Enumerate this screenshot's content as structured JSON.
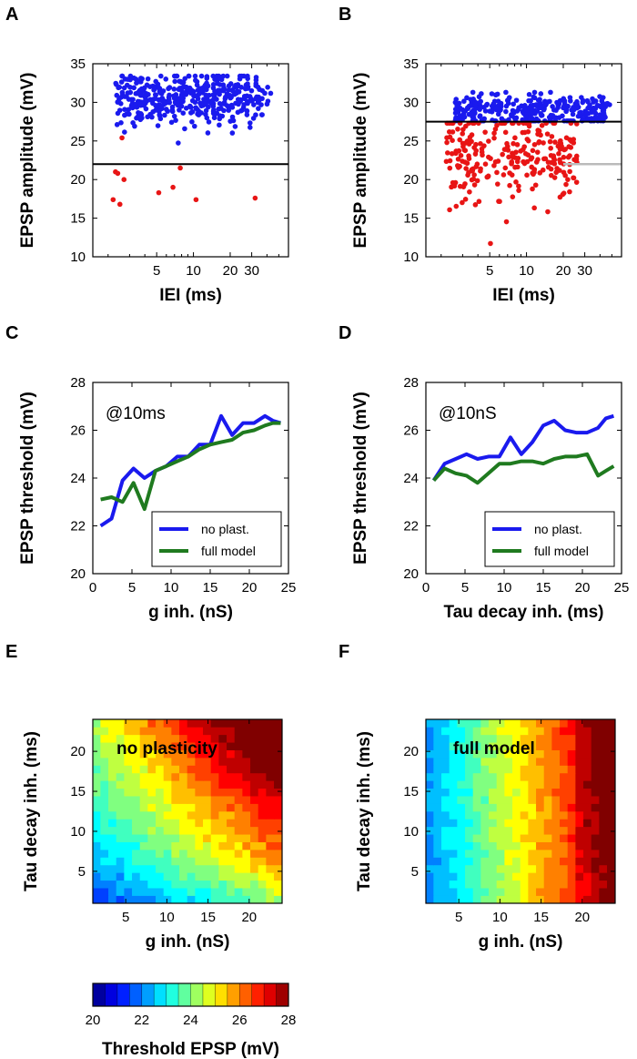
{
  "panels": {
    "A": "A",
    "B": "B",
    "C": "C",
    "D": "D",
    "E": "E",
    "F": "F"
  },
  "colors": {
    "blue": "#1a1aee",
    "red": "#e81515",
    "green": "#1f7a1f",
    "black": "#000000",
    "gray": "#bbbbbb"
  },
  "chart_data": [
    {
      "id": "A",
      "type": "scatter",
      "title": "",
      "xlabel": "IEI (ms)",
      "ylabel": "EPSP amplitude (mV)",
      "xscale": "log",
      "xlim": [
        1.5,
        60
      ],
      "ylim": [
        10,
        35
      ],
      "xticks": [
        5,
        10,
        20,
        30
      ],
      "yticks": [
        10,
        15,
        20,
        25,
        30,
        35
      ],
      "threshold_line": 22,
      "series": [
        {
          "name": "above threshold",
          "color": "blue",
          "n_points": 420,
          "y_mean": 30.5,
          "y_sd": 1.7
        },
        {
          "name": "below threshold",
          "color": "red",
          "points": [
            [
              2.3,
              21.0
            ],
            [
              2.2,
              17.4
            ],
            [
              2.5,
              16.8
            ],
            [
              2.7,
              20.0
            ],
            [
              2.4,
              20.8
            ],
            [
              5.2,
              18.3
            ],
            [
              6.8,
              19.0
            ],
            [
              7.8,
              21.5
            ],
            [
              10.5,
              17.4
            ],
            [
              32,
              17.6
            ],
            [
              2.6,
              25.4
            ]
          ]
        }
      ]
    },
    {
      "id": "B",
      "type": "scatter",
      "title": "",
      "xlabel": "IEI (ms)",
      "ylabel": "EPSP amplitude (mV)",
      "xscale": "log",
      "xlim": [
        1.5,
        60
      ],
      "ylim": [
        10,
        35
      ],
      "xticks": [
        5,
        10,
        20,
        30
      ],
      "yticks": [
        10,
        15,
        20,
        25,
        30,
        35
      ],
      "threshold_line": 27.5,
      "reference_line": 22,
      "series": [
        {
          "name": "above threshold",
          "color": "blue",
          "n_points": 300,
          "y_mean": 29.0,
          "y_sd": 1.1
        },
        {
          "name": "below threshold",
          "color": "red",
          "n_points": 260,
          "y_mean": 23.0,
          "y_sd": 3.0
        }
      ]
    },
    {
      "id": "C",
      "type": "line",
      "title": "",
      "annotation": "@10ms",
      "xlabel": "g inh. (nS)",
      "ylabel": "EPSP threshold (mV)",
      "xlim": [
        0,
        25
      ],
      "ylim": [
        20,
        28
      ],
      "xticks": [
        0,
        5,
        10,
        15,
        20,
        25
      ],
      "yticks": [
        20,
        22,
        24,
        26,
        28
      ],
      "x": [
        1,
        2.4,
        3.8,
        5.2,
        6.6,
        8,
        9.4,
        10.8,
        12.2,
        13.6,
        15,
        16.4,
        17.8,
        19.2,
        20.6,
        22,
        23,
        24
      ],
      "series": [
        {
          "name": "no plast.",
          "color": "blue",
          "values": [
            22.0,
            22.3,
            23.9,
            24.4,
            24.0,
            24.3,
            24.5,
            24.9,
            24.9,
            25.4,
            25.4,
            26.6,
            25.8,
            26.3,
            26.3,
            26.6,
            26.4,
            26.3
          ]
        },
        {
          "name": "full model",
          "color": "green",
          "values": [
            23.1,
            23.2,
            23.0,
            23.8,
            22.7,
            24.3,
            24.5,
            24.7,
            24.9,
            25.2,
            25.4,
            25.5,
            25.6,
            25.9,
            26.0,
            26.2,
            26.3,
            26.3
          ]
        }
      ],
      "legend": "lower-right"
    },
    {
      "id": "D",
      "type": "line",
      "title": "",
      "annotation": "@10nS",
      "xlabel": "Tau decay inh. (ms)",
      "ylabel": "EPSP threshold (mV)",
      "xlim": [
        0,
        25
      ],
      "ylim": [
        20,
        28
      ],
      "xticks": [
        0,
        5,
        10,
        15,
        20,
        25
      ],
      "yticks": [
        20,
        22,
        24,
        26,
        28
      ],
      "x": [
        1,
        2.4,
        3.8,
        5.2,
        6.6,
        8,
        9.4,
        10.8,
        12.2,
        13.6,
        15,
        16.4,
        17.8,
        19.2,
        20.6,
        22,
        23,
        24
      ],
      "series": [
        {
          "name": "no plast.",
          "color": "blue",
          "values": [
            23.9,
            24.6,
            24.8,
            25.0,
            24.8,
            24.9,
            24.9,
            25.7,
            25.0,
            25.5,
            26.2,
            26.4,
            26.0,
            25.9,
            25.9,
            26.1,
            26.5,
            26.6
          ]
        },
        {
          "name": "full model",
          "color": "green",
          "values": [
            23.9,
            24.4,
            24.2,
            24.1,
            23.8,
            24.2,
            24.6,
            24.6,
            24.7,
            24.7,
            24.6,
            24.8,
            24.9,
            24.9,
            25.0,
            24.1,
            24.3,
            24.5
          ]
        }
      ],
      "legend": "lower-right"
    },
    {
      "id": "E",
      "type": "heatmap",
      "title": "no plasticity",
      "xlabel": "g inh. (nS)",
      "ylabel": "Tau decay inh. (ms)",
      "xlim": [
        1,
        24
      ],
      "ylim": [
        1,
        24
      ],
      "xticks": [
        5,
        10,
        15,
        20
      ],
      "yticks": [
        5,
        10,
        15,
        20
      ],
      "value_range": [
        20,
        28
      ],
      "model": "no plasticity"
    },
    {
      "id": "F",
      "type": "heatmap",
      "title": "full model",
      "xlabel": "g inh. (nS)",
      "ylabel": "Tau decay inh. (ms)",
      "xlim": [
        1,
        24
      ],
      "ylim": [
        1,
        24
      ],
      "xticks": [
        5,
        10,
        15,
        20
      ],
      "yticks": [
        5,
        10,
        15,
        20
      ],
      "value_range": [
        20,
        28
      ],
      "model": "full model"
    },
    {
      "id": "colorbar",
      "type": "colorbar",
      "label": "Threshold EPSP (mV)",
      "range": [
        20,
        28
      ],
      "ticks": [
        20,
        22,
        24,
        26,
        28
      ],
      "levels": 16
    }
  ]
}
